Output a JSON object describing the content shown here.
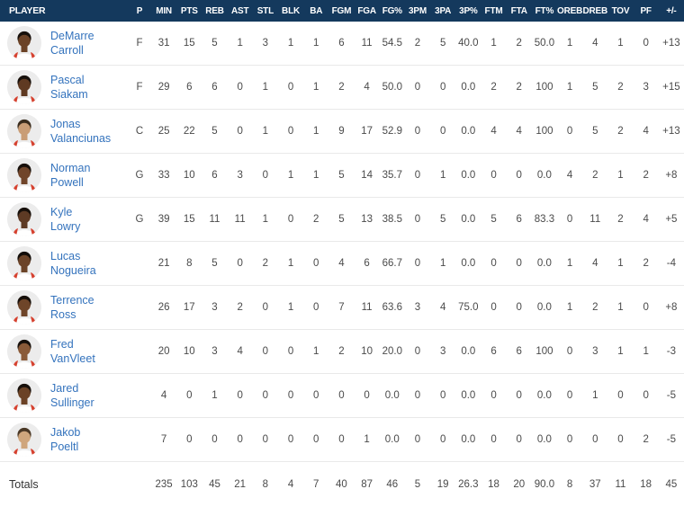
{
  "colors": {
    "header_bg": "#14395d",
    "player_link": "#3473bd",
    "stat_text": "#4a4a4a",
    "row_divider": "#e9e9e9",
    "jersey_red": "#d6412f",
    "jersey_white": "#ffffff",
    "avatar_bg": "#ececec"
  },
  "table": {
    "columns": [
      "PLAYER",
      "P",
      "MIN",
      "PTS",
      "REB",
      "AST",
      "STL",
      "BLK",
      "BA",
      "FGM",
      "FGA",
      "FG%",
      "3PM",
      "3PA",
      "3P%",
      "FTM",
      "FTA",
      "FT%",
      "OREB",
      "DREB",
      "TOV",
      "PF",
      "+/-"
    ],
    "players": [
      {
        "first": "DeMarre",
        "last": "Carroll",
        "pos": "F",
        "skin": "#6b4226",
        "hair": "#17100b",
        "stats": [
          "31",
          "15",
          "5",
          "1",
          "3",
          "1",
          "1",
          "6",
          "11",
          "54.5",
          "2",
          "5",
          "40.0",
          "1",
          "2",
          "50.0",
          "1",
          "4",
          "1",
          "0",
          "+13"
        ]
      },
      {
        "first": "Pascal",
        "last": "Siakam",
        "pos": "F",
        "skin": "#5f3a22",
        "hair": "#17100b",
        "stats": [
          "29",
          "6",
          "6",
          "0",
          "1",
          "0",
          "1",
          "2",
          "4",
          "50.0",
          "0",
          "0",
          "0.0",
          "2",
          "2",
          "100",
          "1",
          "5",
          "2",
          "3",
          "+15"
        ]
      },
      {
        "first": "Jonas",
        "last": "Valanciunas",
        "pos": "C",
        "skin": "#c99d76",
        "hair": "#3a2c1d",
        "stats": [
          "25",
          "22",
          "5",
          "0",
          "1",
          "0",
          "1",
          "9",
          "17",
          "52.9",
          "0",
          "0",
          "0.0",
          "4",
          "4",
          "100",
          "0",
          "5",
          "2",
          "4",
          "+13"
        ]
      },
      {
        "first": "Norman",
        "last": "Powell",
        "pos": "G",
        "skin": "#70452a",
        "hair": "#17100b",
        "stats": [
          "33",
          "10",
          "6",
          "3",
          "0",
          "1",
          "1",
          "5",
          "14",
          "35.7",
          "0",
          "1",
          "0.0",
          "0",
          "0",
          "0.0",
          "4",
          "2",
          "1",
          "2",
          "+8"
        ]
      },
      {
        "first": "Kyle",
        "last": "Lowry",
        "pos": "G",
        "skin": "#5d3a24",
        "hair": "#17100b",
        "stats": [
          "39",
          "15",
          "11",
          "11",
          "1",
          "0",
          "2",
          "5",
          "13",
          "38.5",
          "0",
          "5",
          "0.0",
          "5",
          "6",
          "83.3",
          "0",
          "11",
          "2",
          "4",
          "+5"
        ]
      },
      {
        "first": "Lucas",
        "last": "Nogueira",
        "pos": "",
        "skin": "#6b4328",
        "hair": "#120d09",
        "stats": [
          "21",
          "8",
          "5",
          "0",
          "2",
          "1",
          "0",
          "4",
          "6",
          "66.7",
          "0",
          "1",
          "0.0",
          "0",
          "0",
          "0.0",
          "1",
          "4",
          "1",
          "2",
          "-4"
        ]
      },
      {
        "first": "Terrence",
        "last": "Ross",
        "pos": "",
        "skin": "#6e4529",
        "hair": "#17100b",
        "stats": [
          "26",
          "17",
          "3",
          "2",
          "0",
          "1",
          "0",
          "7",
          "11",
          "63.6",
          "3",
          "4",
          "75.0",
          "0",
          "0",
          "0.0",
          "1",
          "2",
          "1",
          "0",
          "+8"
        ]
      },
      {
        "first": "Fred",
        "last": "VanVleet",
        "pos": "",
        "skin": "#8a5a38",
        "hair": "#17100b",
        "stats": [
          "20",
          "10",
          "3",
          "4",
          "0",
          "0",
          "1",
          "2",
          "10",
          "20.0",
          "0",
          "3",
          "0.0",
          "6",
          "6",
          "100",
          "0",
          "3",
          "1",
          "1",
          "-3"
        ]
      },
      {
        "first": "Jared",
        "last": "Sullinger",
        "pos": "",
        "skin": "#6b4226",
        "hair": "#17100b",
        "stats": [
          "4",
          "0",
          "1",
          "0",
          "0",
          "0",
          "0",
          "0",
          "0",
          "0.0",
          "0",
          "0",
          "0.0",
          "0",
          "0",
          "0.0",
          "0",
          "1",
          "0",
          "0",
          "-5"
        ]
      },
      {
        "first": "Jakob",
        "last": "Poeltl",
        "pos": "",
        "skin": "#cfa67d",
        "hair": "#4a3826",
        "stats": [
          "7",
          "0",
          "0",
          "0",
          "0",
          "0",
          "0",
          "0",
          "1",
          "0.0",
          "0",
          "0",
          "0.0",
          "0",
          "0",
          "0.0",
          "0",
          "0",
          "0",
          "2",
          "-5"
        ]
      }
    ],
    "totals": {
      "label": "Totals",
      "stats": [
        "235",
        "103",
        "45",
        "21",
        "8",
        "4",
        "7",
        "40",
        "87",
        "46",
        "5",
        "19",
        "26.3",
        "18",
        "20",
        "90.0",
        "8",
        "37",
        "11",
        "18",
        "45"
      ]
    }
  }
}
